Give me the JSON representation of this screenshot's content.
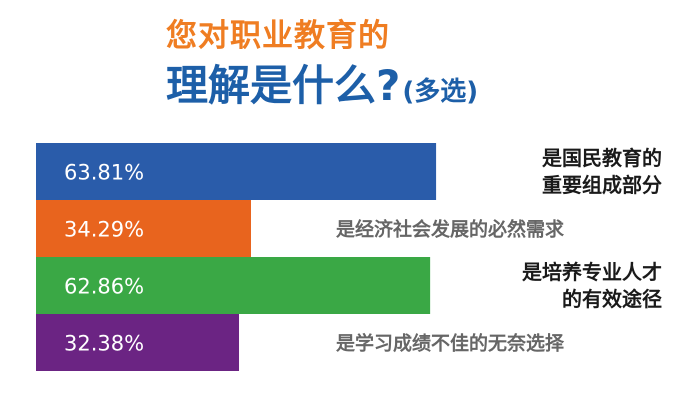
{
  "title": {
    "line1": "您对职业教育的",
    "line2": "理解是什么?",
    "line2_suffix": "(多选)"
  },
  "colors": {
    "title_orange": "#ef7d22",
    "title_blue": "#1d5fa8"
  },
  "chart_data": {
    "type": "bar",
    "orientation": "horizontal",
    "categories": [
      "是国民教育的重要组成部分",
      "是经济社会发展的必然需求",
      "是培养专业人才的有效途径",
      "是学习成绩不佳的无奈选择"
    ],
    "category_lines": [
      [
        "是国民教育的",
        "重要组成部分"
      ],
      [
        "是经济社会发展的必然需求"
      ],
      [
        "是培养专业人才",
        "的有效途径"
      ],
      [
        "是学习成绩不佳的无奈选择"
      ]
    ],
    "values": [
      63.81,
      34.29,
      62.86,
      32.38
    ],
    "value_labels": [
      "63.81%",
      "34.29%",
      "62.86%",
      "32.38%"
    ],
    "bar_colors": [
      "#2a5caa",
      "#e8641e",
      "#3aa845",
      "#6b2483"
    ],
    "unit": "%",
    "grid": false,
    "legend": "none"
  }
}
